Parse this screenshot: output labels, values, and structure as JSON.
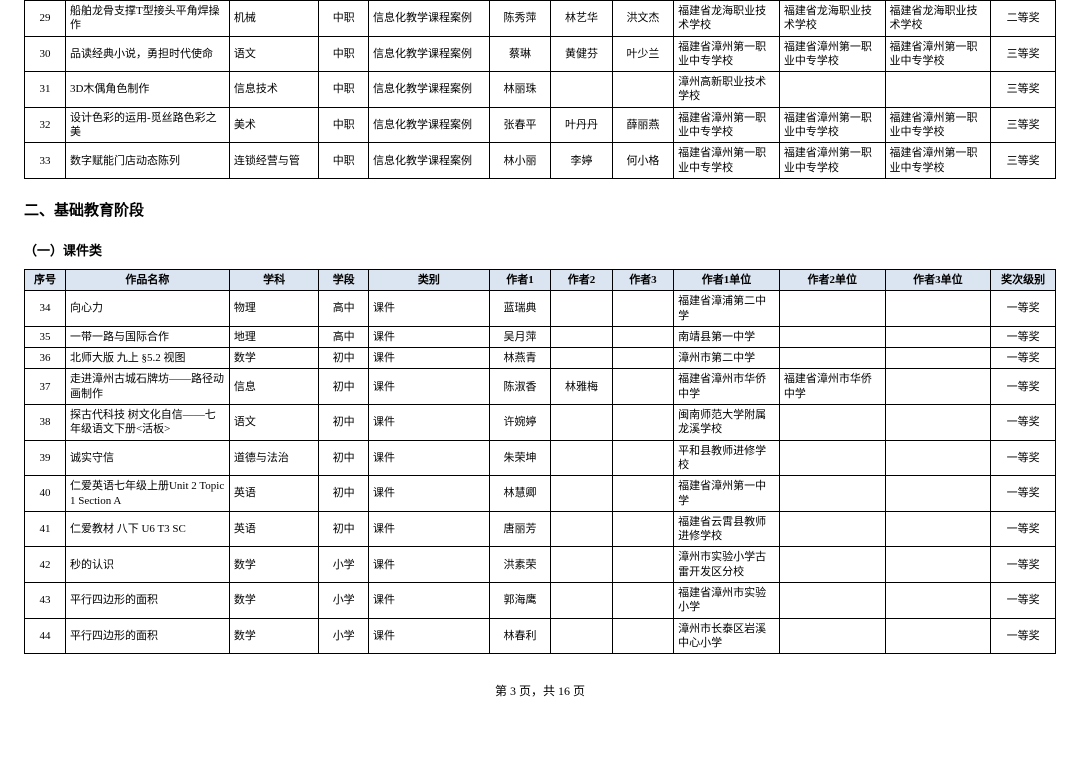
{
  "columns": {
    "idx": "序号",
    "title": "作品名称",
    "subject": "学科",
    "stage": "学段",
    "category": "类别",
    "a1": "作者1",
    "a2": "作者2",
    "a3": "作者3",
    "u1": "作者1单位",
    "u2": "作者2单位",
    "u3": "作者3单位",
    "award": "奖次级别"
  },
  "section2_title": "二、基础教育阶段",
  "sub_section": "（一）课件类",
  "top_rows": [
    {
      "idx": "29",
      "title": "船舶龙骨支撑T型接头平角焊操作",
      "subject": "机械",
      "stage": "中职",
      "category": "信息化教学课程案例",
      "a1": "陈秀萍",
      "a2": "林艺华",
      "a3": "洪文杰",
      "u1": "福建省龙海职业技术学校",
      "u2": "福建省龙海职业技术学校",
      "u3": "福建省龙海职业技术学校",
      "award": "二等奖"
    },
    {
      "idx": "30",
      "title": "品读经典小说，勇担时代使命",
      "subject": "语文",
      "stage": "中职",
      "category": "信息化教学课程案例",
      "a1": "蔡琳",
      "a2": "黄健芬",
      "a3": "叶少兰",
      "u1": "福建省漳州第一职业中专学校",
      "u2": "福建省漳州第一职业中专学校",
      "u3": "福建省漳州第一职业中专学校",
      "award": "三等奖"
    },
    {
      "idx": "31",
      "title": "3D木偶角色制作",
      "subject": "信息技术",
      "stage": "中职",
      "category": "信息化教学课程案例",
      "a1": "林丽珠",
      "a2": "",
      "a3": "",
      "u1": "漳州高新职业技术学校",
      "u2": "",
      "u3": "",
      "award": "三等奖"
    },
    {
      "idx": "32",
      "title": "设计色彩的运用-觅丝路色彩之美",
      "subject": "美术",
      "stage": "中职",
      "category": "信息化教学课程案例",
      "a1": "张春平",
      "a2": "叶丹丹",
      "a3": "薛丽燕",
      "u1": "福建省漳州第一职业中专学校",
      "u2": "福建省漳州第一职业中专学校",
      "u3": "福建省漳州第一职业中专学校",
      "award": "三等奖"
    },
    {
      "idx": "33",
      "title": "数字赋能门店动态陈列",
      "subject": "连锁经营与管",
      "stage": "中职",
      "category": "信息化教学课程案例",
      "a1": "林小丽",
      "a2": "李婷",
      "a3": "何小格",
      "u1": "福建省漳州第一职业中专学校",
      "u2": "福建省漳州第一职业中专学校",
      "u3": "福建省漳州第一职业中专学校",
      "award": "三等奖"
    }
  ],
  "bottom_rows": [
    {
      "idx": "34",
      "title": "向心力",
      "subject": "物理",
      "stage": "高中",
      "category": "课件",
      "a1": "蓝瑞典",
      "a2": "",
      "a3": "",
      "u1": "福建省漳浦第二中学",
      "u2": "",
      "u3": "",
      "award": "一等奖"
    },
    {
      "idx": "35",
      "title": "一带一路与国际合作",
      "subject": "地理",
      "stage": "高中",
      "category": "课件",
      "a1": "吴月萍",
      "a2": "",
      "a3": "",
      "u1": "南靖县第一中学",
      "u2": "",
      "u3": "",
      "award": "一等奖"
    },
    {
      "idx": "36",
      "title": "北师大版 九上 §5.2 视图",
      "subject": "数学",
      "stage": "初中",
      "category": "课件",
      "a1": "林燕青",
      "a2": "",
      "a3": "",
      "u1": "漳州市第二中学",
      "u2": "",
      "u3": "",
      "award": "一等奖"
    },
    {
      "idx": "37",
      "title": "走进漳州古城石牌坊——路径动画制作",
      "subject": "信息",
      "stage": "初中",
      "category": "课件",
      "a1": "陈淑香",
      "a2": "林雅梅",
      "a3": "",
      "u1": "福建省漳州市华侨中学",
      "u2": "福建省漳州市华侨中学",
      "u3": "",
      "award": "一等奖"
    },
    {
      "idx": "38",
      "title": "探古代科技 树文化自信——七年级语文下册<活板>",
      "subject": "语文",
      "stage": "初中",
      "category": "课件",
      "a1": "许婉婷",
      "a2": "",
      "a3": "",
      "u1": "闽南师范大学附属龙溪学校",
      "u2": "",
      "u3": "",
      "award": "一等奖"
    },
    {
      "idx": "39",
      "title": "诚实守信",
      "subject": "道德与法治",
      "stage": "初中",
      "category": "课件",
      "a1": "朱荣坤",
      "a2": "",
      "a3": "",
      "u1": "平和县教师进修学校",
      "u2": "",
      "u3": "",
      "award": "一等奖"
    },
    {
      "idx": "40",
      "title": "仁爱英语七年级上册Unit 2 Topic 1 Section A",
      "subject": "英语",
      "stage": "初中",
      "category": "课件",
      "a1": "林慧卿",
      "a2": "",
      "a3": "",
      "u1": "福建省漳州第一中学",
      "u2": "",
      "u3": "",
      "award": "一等奖"
    },
    {
      "idx": "41",
      "title": "仁爱教材 八下 U6 T3 SC",
      "subject": "英语",
      "stage": "初中",
      "category": "课件",
      "a1": "唐丽芳",
      "a2": "",
      "a3": "",
      "u1": "福建省云霄县教师进修学校",
      "u2": "",
      "u3": "",
      "award": "一等奖"
    },
    {
      "idx": "42",
      "title": "秒的认识",
      "subject": "数学",
      "stage": "小学",
      "category": "课件",
      "a1": "洪素荣",
      "a2": "",
      "a3": "",
      "u1": "漳州市实验小学古雷开发区分校",
      "u2": "",
      "u3": "",
      "award": "一等奖"
    },
    {
      "idx": "43",
      "title": "平行四边形的面积",
      "subject": "数学",
      "stage": "小学",
      "category": "课件",
      "a1": "郭海鹰",
      "a2": "",
      "a3": "",
      "u1": "福建省漳州市实验小学",
      "u2": "",
      "u3": "",
      "award": "一等奖"
    },
    {
      "idx": "44",
      "title": "平行四边形的面积",
      "subject": "数学",
      "stage": "小学",
      "category": "课件",
      "a1": "林春利",
      "a2": "",
      "a3": "",
      "u1": "漳州市长泰区岩溪中心小学",
      "u2": "",
      "u3": "",
      "award": "一等奖"
    }
  ],
  "footer": "第 3 页，共 16 页"
}
